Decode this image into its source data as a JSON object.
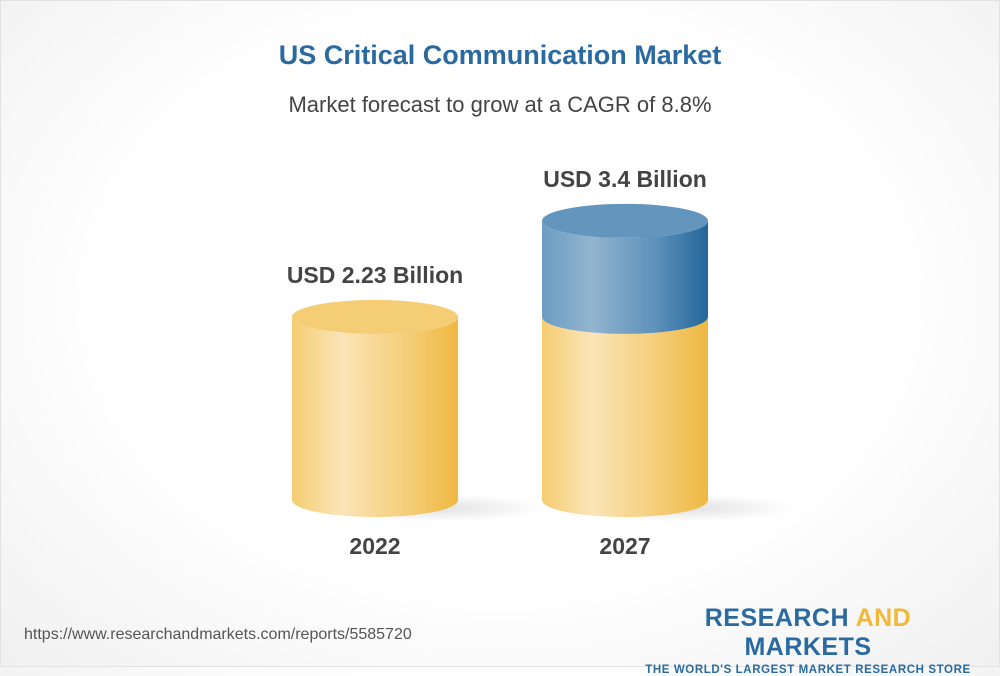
{
  "title": "US Critical Communication Market",
  "subtitle": "Market forecast to grow at a CAGR of 8.8%",
  "chart_data": {
    "type": "bar",
    "style": "3d-cylinder",
    "categories": [
      "2022",
      "2027"
    ],
    "values": [
      2.23,
      3.4
    ],
    "data_labels": [
      "USD 2.23 Billion",
      "USD 3.4 Billion"
    ],
    "unit": "USD Billion",
    "colors": {
      "base": "#f3c45e",
      "growth": "#4d87b5"
    }
  },
  "footer": {
    "url": "https://www.researchandmarkets.com/reports/5585720",
    "logo_part1": "RESEARCH ",
    "logo_part2": "AND",
    "logo_part3": " MARKETS",
    "tagline": "THE WORLD'S LARGEST MARKET RESEARCH STORE"
  }
}
